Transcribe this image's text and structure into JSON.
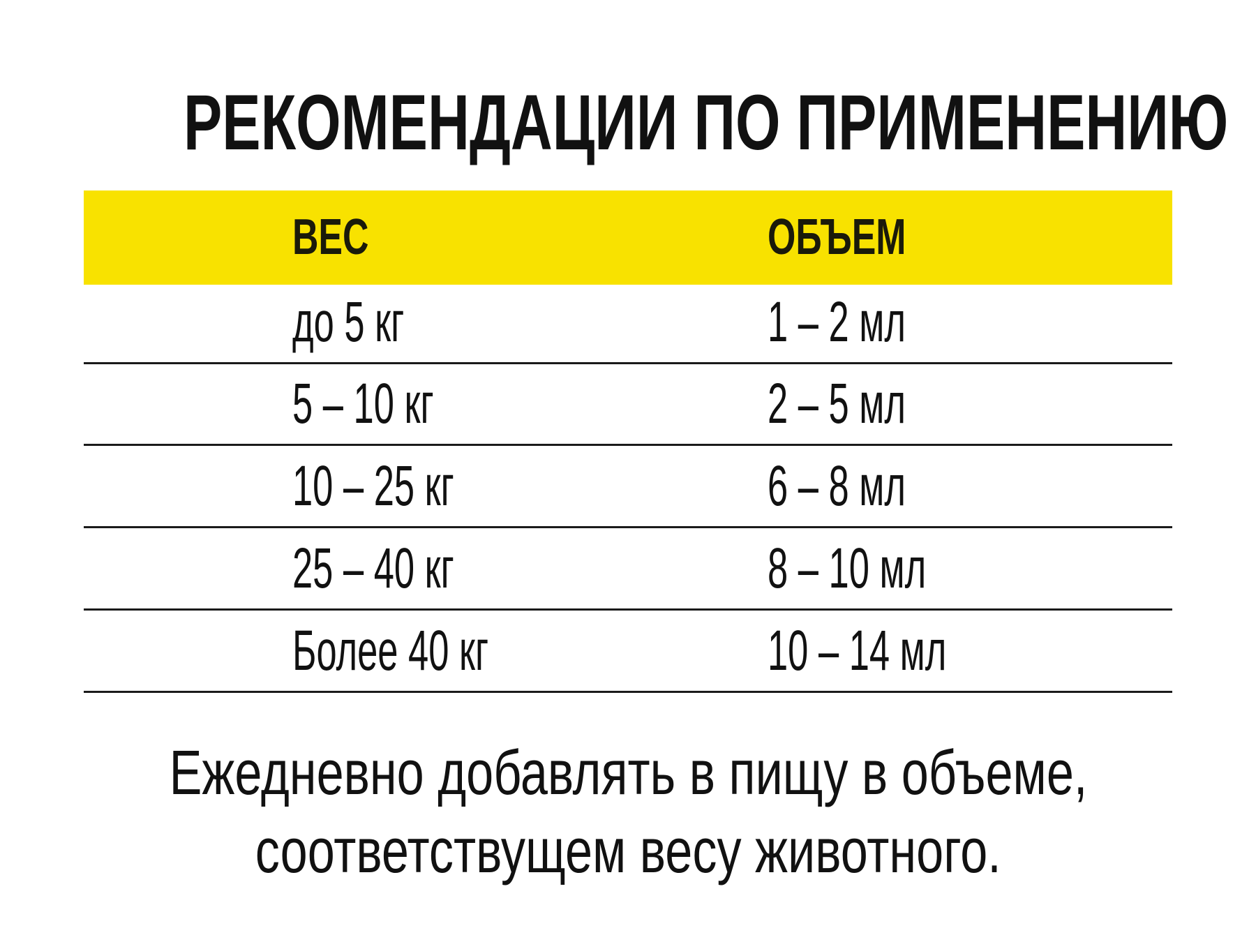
{
  "title": "РЕКОМЕНДАЦИИ ПО ПРИМЕНЕНИЮ",
  "table": {
    "header_color": "#f8e200",
    "columns": [
      "ВЕС",
      "ОБЪЕМ"
    ],
    "rows": [
      [
        "до 5 кг",
        "1 – 2 мл"
      ],
      [
        "5 – 10 кг",
        "2 – 5 мл"
      ],
      [
        "10 – 25 кг",
        "6 – 8 мл"
      ],
      [
        "25 – 40 кг",
        "8 – 10 мл"
      ],
      [
        "Более 40 кг",
        "10 – 14 мл"
      ]
    ]
  },
  "footer": {
    "line1": "Ежедневно добавлять в пищу в объеме,",
    "line2": "соответствущем весу животного."
  }
}
